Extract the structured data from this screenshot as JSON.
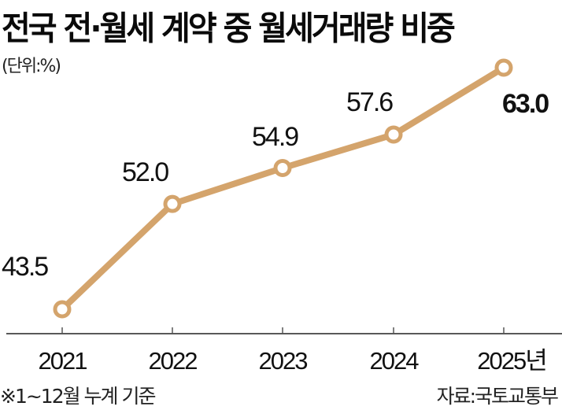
{
  "title": "전국 전·월세 계약 중 월세거래량 비중",
  "unit": "(단위:%)",
  "footnote": "※1~12월 누계 기준",
  "source": "자료:국토교통부",
  "colors": {
    "line": "#d4a46c",
    "marker_fill": "#ffffff",
    "text": "#111111",
    "axis": "#222222"
  },
  "chart_data": {
    "type": "line",
    "title": "전국 전·월세 계약 중 월세거래량 비중",
    "subtitle": "(단위:%)",
    "xlabel": "",
    "ylabel": "%",
    "categories": [
      "2021",
      "2022",
      "2023",
      "2024",
      "2025년"
    ],
    "series": [
      {
        "name": "월세거래량 비중",
        "values": [
          43.5,
          52.0,
          54.9,
          57.6,
          63.0
        ]
      }
    ],
    "value_labels": [
      "43.5",
      "52.0",
      "54.9",
      "57.6",
      "63.0"
    ],
    "highlight_index": 4,
    "grid": false,
    "legend": "none",
    "annotations": [
      "※1~12월 누계 기준",
      "자료:국토교통부"
    ]
  }
}
